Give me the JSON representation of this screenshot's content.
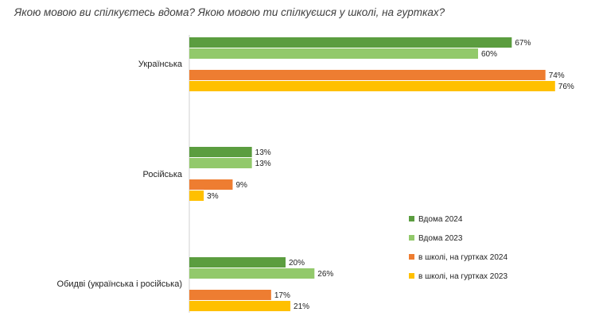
{
  "chart_data": {
    "type": "bar",
    "orientation": "horizontal",
    "title": "Якою мовою ви спілкуєтесь вдома? Якою мовою ти спілкуєшся у школі, на гуртках?",
    "categories": [
      "Українська",
      "Російська",
      "Обидві  (українська  і російська)"
    ],
    "series": [
      {
        "name": "Вдома 2024",
        "values": [
          67,
          13,
          20
        ],
        "color": "#5b9d3f"
      },
      {
        "name": "Вдома 2023",
        "values": [
          60,
          13,
          26
        ],
        "color": "#92c96b"
      },
      {
        "name": "в школі, на гуртках  2024",
        "values": [
          74,
          9,
          17
        ],
        "color": "#ee7d31"
      },
      {
        "name": "в школі, на гуртках  2023",
        "values": [
          76,
          3,
          21
        ],
        "color": "#ffc000"
      }
    ],
    "value_suffix": "%",
    "xlim": [
      0,
      100
    ],
    "grid": false,
    "legend_position": "right"
  }
}
